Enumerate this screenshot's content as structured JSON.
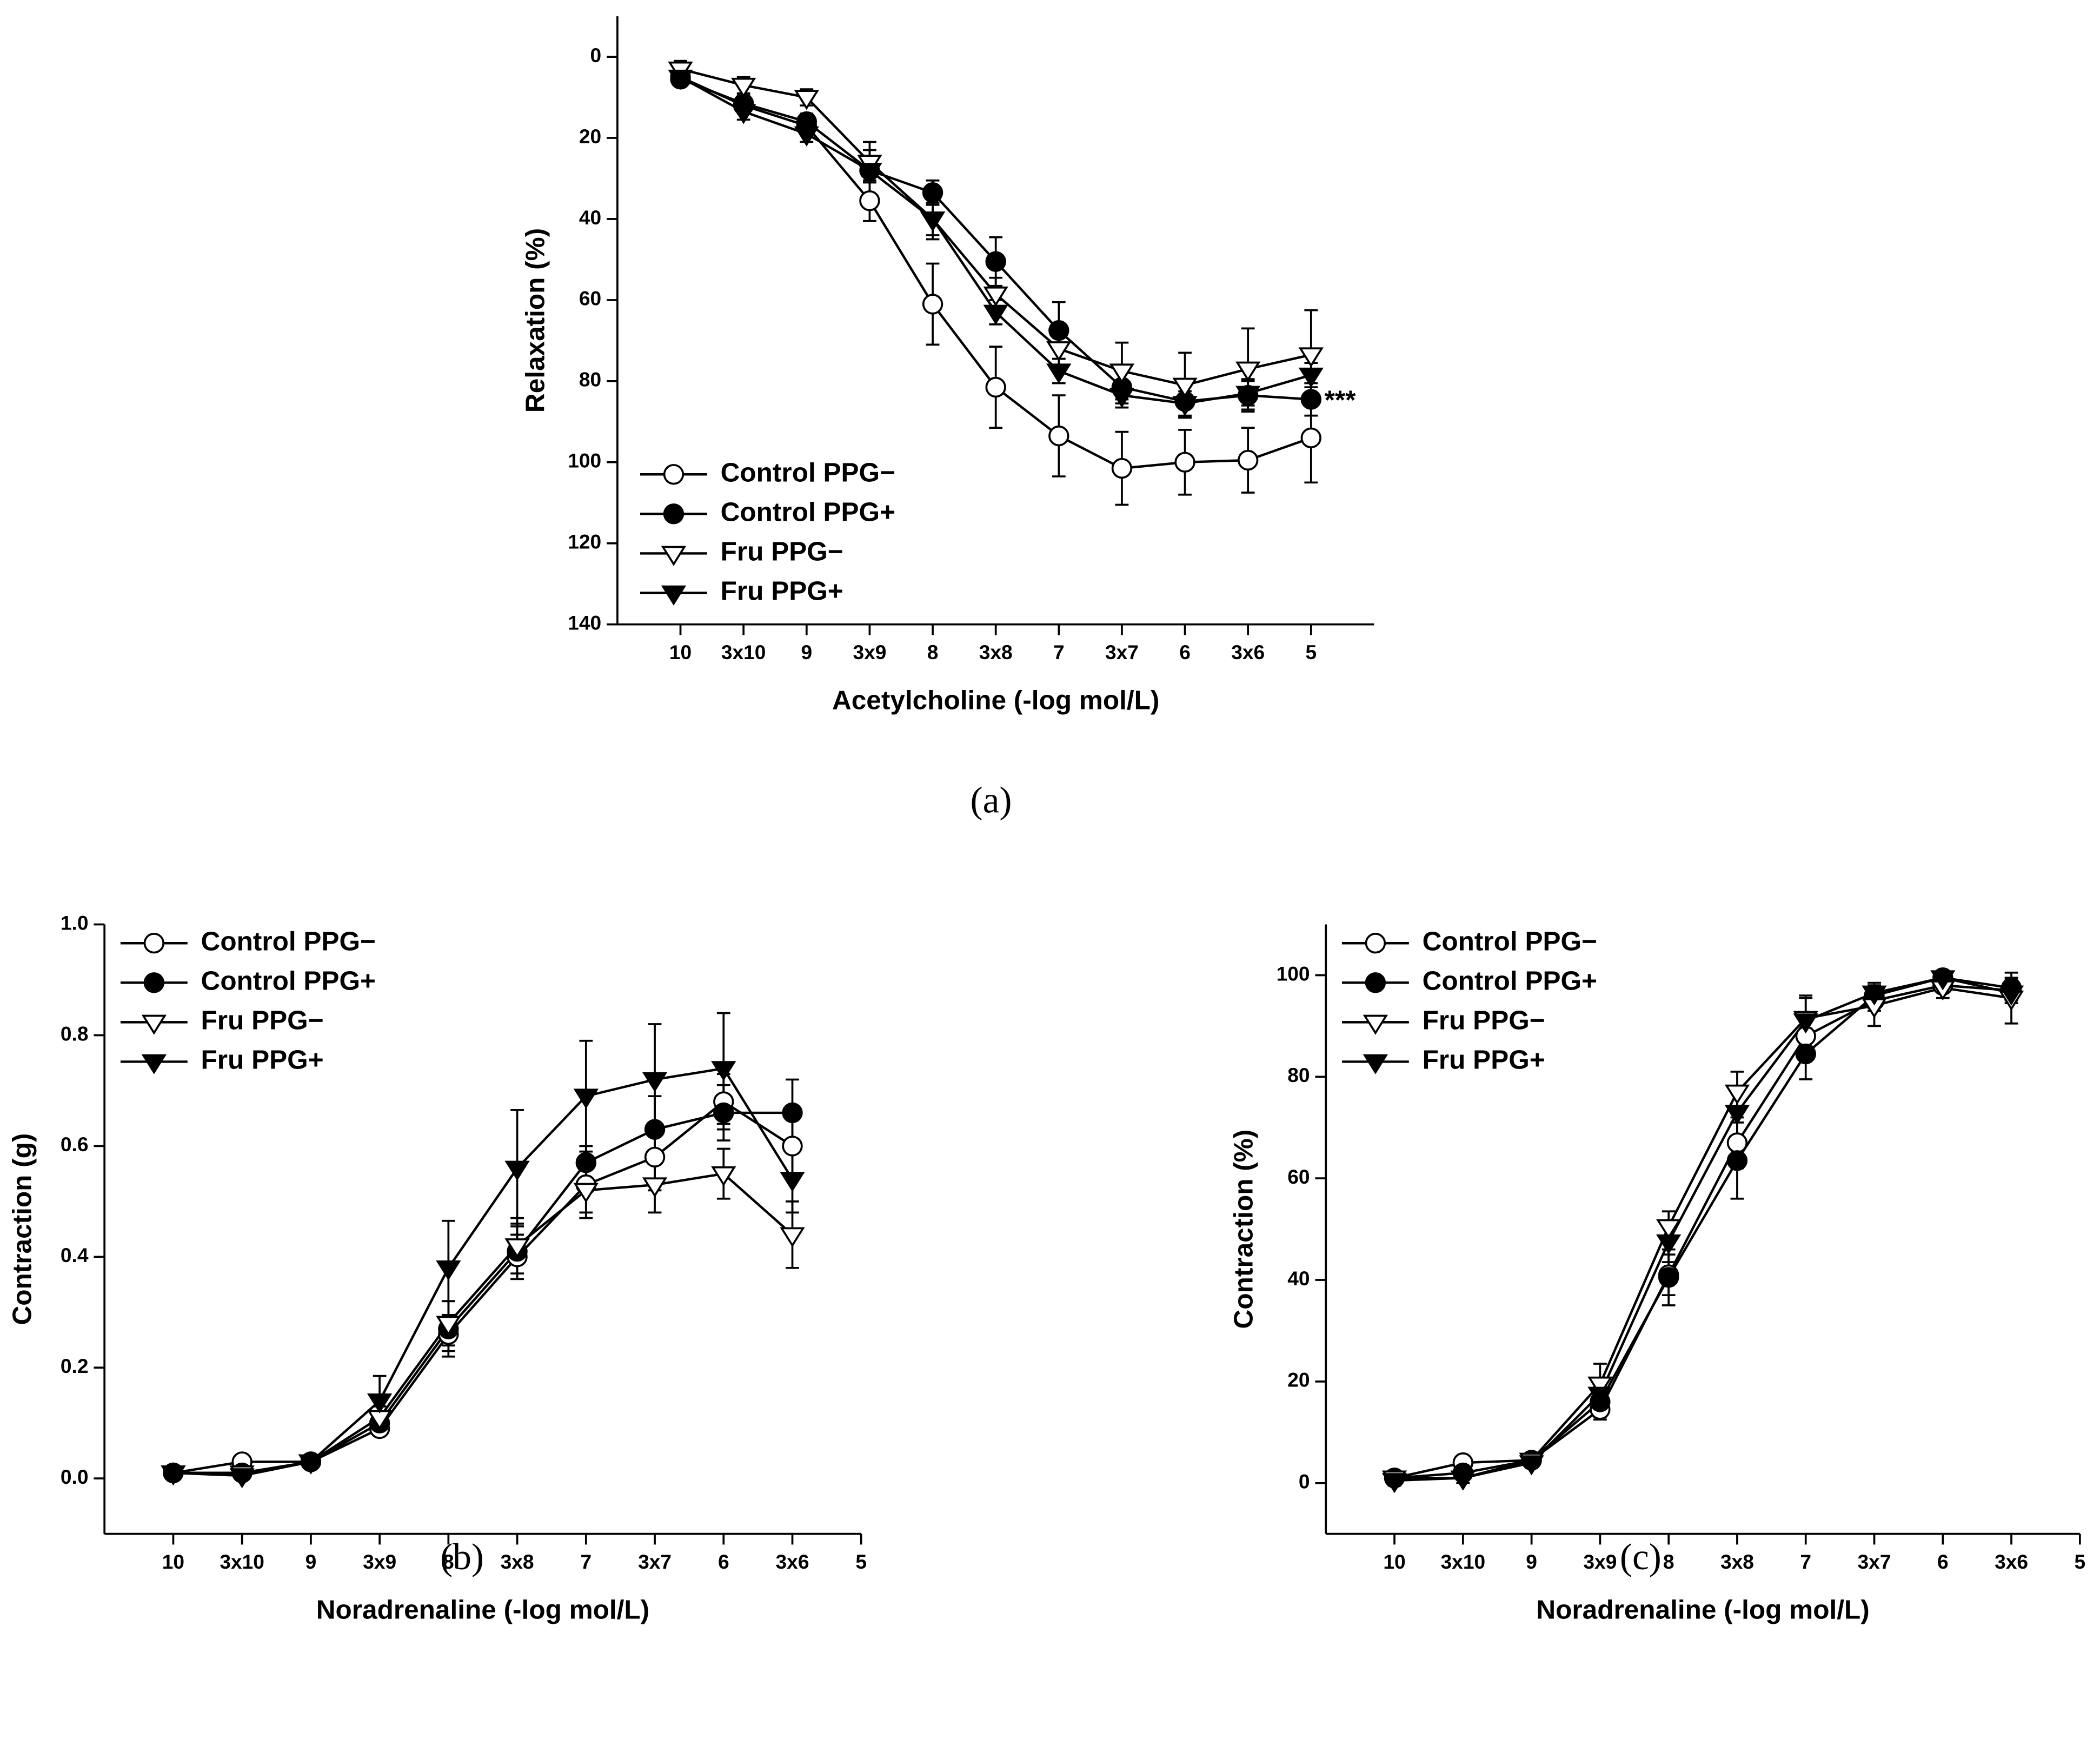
{
  "chart_data": [
    {
      "type": "line",
      "panel_label": "(a)",
      "x_label": "Acetylcholine (-log mol/L)",
      "y_label": "Relaxation (%)",
      "categories": [
        "10",
        "3x10",
        "9",
        "3x9",
        "8",
        "3x8",
        "7",
        "3x7",
        "6",
        "3x6",
        "5"
      ],
      "ylim": [
        -10,
        140
      ],
      "y_reversed": true,
      "yticks": [
        0,
        20,
        40,
        60,
        80,
        100,
        120,
        140
      ],
      "legend": "lower left",
      "annotation": "***",
      "series": [
        {
          "name": "Control PPG−",
          "color": "#000000",
          "marker": "circle-open",
          "values": [
            5,
            12,
            17,
            35.5,
            61,
            81.5,
            93.5,
            101.5,
            100,
            99.5,
            94
          ],
          "errors": [
            2,
            2,
            2,
            5,
            10,
            10,
            10,
            9,
            8,
            8,
            11
          ]
        },
        {
          "name": "Control PPG+",
          "color": "#000000",
          "marker": "circle-filled",
          "values": [
            5.5,
            11.5,
            16,
            28,
            33.5,
            50.5,
            67.5,
            81.5,
            85,
            83.5,
            84.5
          ],
          "errors": [
            1,
            2,
            2,
            3,
            3,
            6,
            7,
            4,
            4,
            4,
            4
          ]
        },
        {
          "name": "Fru PPG−",
          "color": "#000000",
          "marker": "triangle-open",
          "values": [
            3,
            7,
            10,
            26,
            40,
            58.5,
            72,
            77.5,
            81,
            77,
            73.5
          ],
          "errors": [
            2,
            2,
            2,
            3,
            4,
            4,
            5,
            7,
            8,
            10,
            11
          ]
        },
        {
          "name": "Fru PPG+",
          "color": "#000000",
          "marker": "triangle-filled",
          "values": [
            5,
            13.5,
            19,
            28,
            40,
            63,
            77.5,
            83.5,
            85.5,
            83,
            78.5
          ],
          "errors": [
            2,
            2,
            2,
            7,
            5,
            3,
            3,
            3,
            3,
            3,
            3
          ]
        }
      ]
    },
    {
      "type": "line",
      "panel_label": "(b)",
      "x_label": "Noradrenaline (-log mol/L)",
      "y_label": "Contraction (g)",
      "categories": [
        "10",
        "3x10",
        "9",
        "3x9",
        "8",
        "3x8",
        "7",
        "3x7",
        "6",
        "3x6",
        "5"
      ],
      "ylim": [
        -0.1,
        1.0
      ],
      "yticks": [
        {
          "value": 0,
          "label": "0.0"
        },
        0.2,
        0.4,
        0.6,
        0.8,
        {
          "value": 1,
          "label": "1.0"
        }
      ],
      "legend": "upper left",
      "series": [
        {
          "name": "Control PPG−",
          "color": "#000000",
          "marker": "circle-open",
          "values": [
            0.01,
            0.03,
            0.03,
            0.09,
            0.26,
            0.4,
            0.53,
            0.58,
            0.68,
            0.6,
            null
          ],
          "errors": [
            0.005,
            0.01,
            0.01,
            0.01,
            0.03,
            0.04,
            0.05,
            0.06,
            0.05,
            0.05,
            null
          ]
        },
        {
          "name": "Control PPG+",
          "color": "#000000",
          "marker": "circle-filled",
          "values": [
            0.01,
            0.01,
            0.03,
            0.1,
            0.27,
            0.41,
            0.57,
            0.63,
            0.66,
            0.66,
            null
          ],
          "errors": [
            0.005,
            0.005,
            0.01,
            0.02,
            0.05,
            0.05,
            0.03,
            0.06,
            0.05,
            0.06,
            null
          ]
        },
        {
          "name": "Fru PPG−",
          "color": "#000000",
          "marker": "triangle-open",
          "values": [
            0.01,
            0.01,
            0.03,
            0.11,
            0.28,
            0.42,
            0.52,
            0.53,
            0.55,
            0.44,
            null
          ],
          "errors": [
            0.005,
            0.005,
            0.01,
            0.02,
            0.04,
            0.05,
            0.05,
            0.05,
            0.045,
            0.06,
            null
          ]
        },
        {
          "name": "Fru PPG+",
          "color": "#000000",
          "marker": "triangle-filled",
          "values": [
            0.01,
            0.005,
            0.03,
            0.14,
            0.38,
            0.56,
            0.69,
            0.72,
            0.74,
            0.54,
            null
          ],
          "errors": [
            0.005,
            0.005,
            0.01,
            0.045,
            0.085,
            0.105,
            0.1,
            0.1,
            0.1,
            0.06,
            null
          ]
        }
      ]
    },
    {
      "type": "line",
      "panel_label": "(c)",
      "x_label": "Noradrenaline (-log mol/L)",
      "y_label": "Contraction (%)",
      "categories": [
        "10",
        "3x10",
        "9",
        "3x9",
        "8",
        "3x8",
        "7",
        "3x7",
        "6",
        "3x6",
        "5"
      ],
      "ylim": [
        -10,
        110
      ],
      "yticks": [
        0,
        20,
        40,
        60,
        80,
        100
      ],
      "legend": "upper left",
      "series": [
        {
          "name": "Control PPG−",
          "color": "#000000",
          "marker": "circle-open",
          "values": [
            1,
            4,
            4.5,
            14.5,
            41,
            67,
            88,
            95,
            98,
            97,
            null
          ],
          "errors": [
            1,
            1,
            1,
            2,
            4,
            5,
            3,
            2,
            1,
            2,
            null
          ]
        },
        {
          "name": "Control PPG+",
          "color": "#000000",
          "marker": "circle-filled",
          "values": [
            1,
            2,
            4.5,
            16,
            40.5,
            63.5,
            84.5,
            96,
            99.5,
            97.5,
            null
          ],
          "errors": [
            1,
            1,
            1,
            3,
            5.5,
            7.5,
            5,
            2,
            1,
            2,
            null
          ]
        },
        {
          "name": "Fru PPG−",
          "color": "#000000",
          "marker": "triangle-open",
          "values": [
            1,
            1,
            4.5,
            19.5,
            50.5,
            77,
            91.5,
            94,
            97.5,
            95.5,
            null
          ],
          "errors": [
            1,
            1,
            1,
            4,
            3,
            4,
            4,
            4,
            2,
            5,
            null
          ]
        },
        {
          "name": "Fru PPG+",
          "color": "#000000",
          "marker": "triangle-filled",
          "values": [
            0.5,
            1,
            4,
            17.5,
            47.5,
            73,
            91,
            96.5,
            99.5,
            96.5,
            null
          ],
          "errors": [
            1,
            1,
            1,
            3,
            4,
            5,
            5,
            2,
            1,
            2,
            null
          ]
        }
      ]
    }
  ]
}
